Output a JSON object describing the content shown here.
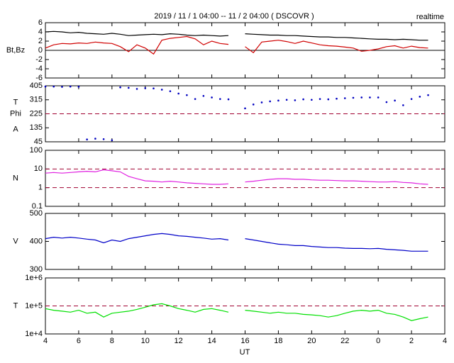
{
  "header": {
    "title": "2019 / 11 / 1  04:00 -- 11 / 2  04:00 ( DSCOVR )",
    "note": "realtime"
  },
  "x_axis": {
    "label": "UT",
    "xlim": [
      4,
      28
    ],
    "xticks": [
      4,
      6,
      8,
      10,
      12,
      14,
      16,
      18,
      20,
      22,
      {
        "value": 24,
        "label": "0"
      },
      {
        "value": 26,
        "label": "2"
      },
      {
        "value": 28,
        "label": "4"
      }
    ],
    "x": [
      4,
      4.5,
      5,
      5.5,
      6,
      6.5,
      7,
      7.5,
      8,
      8.5,
      9,
      9.5,
      10,
      10.5,
      11,
      11.5,
      12,
      12.5,
      13,
      13.5,
      14,
      14.5,
      15,
      15.5,
      16,
      16.5,
      17,
      17.5,
      18,
      18.5,
      19,
      19.5,
      20,
      20.5,
      21,
      21.5,
      22,
      22.5,
      23,
      23.5,
      24,
      24.5,
      25,
      25.5,
      26,
      26.5,
      27
    ]
  },
  "chart_data": [
    {
      "type": "line",
      "ylabels": [
        "Bt,Bz"
      ],
      "ylim": [
        -6,
        6
      ],
      "yticks": [
        -6,
        -4,
        -2,
        0,
        2,
        4,
        6
      ],
      "log": false,
      "ref_lines": [
        0
      ],
      "ref_style": "solid",
      "ref_color": "#000000",
      "series": [
        {
          "name": "Bt",
          "color": "#000000",
          "values": [
            4.0,
            4.1,
            4.0,
            3.8,
            3.9,
            3.7,
            3.6,
            3.5,
            3.7,
            3.5,
            3.2,
            3.3,
            3.4,
            3.5,
            3.4,
            3.6,
            3.5,
            3.3,
            3.2,
            3.3,
            3.2,
            3.1,
            3.2,
            null,
            3.6,
            3.5,
            3.4,
            3.3,
            3.3,
            3.2,
            3.2,
            3.1,
            3.0,
            2.9,
            2.9,
            2.8,
            2.8,
            2.7,
            2.6,
            2.5,
            2.4,
            2.4,
            2.3,
            2.4,
            2.3,
            2.2,
            2.2
          ]
        },
        {
          "name": "Bz",
          "color": "#d00000",
          "values": [
            0.5,
            1.2,
            1.5,
            1.4,
            1.6,
            1.5,
            1.8,
            1.6,
            1.5,
            0.8,
            -0.3,
            1.2,
            0.5,
            -0.8,
            2.2,
            2.6,
            2.8,
            3.0,
            2.5,
            1.2,
            2.0,
            1.5,
            1.3,
            null,
            0.8,
            -0.5,
            1.8,
            2.0,
            2.2,
            1.9,
            1.5,
            2.0,
            1.6,
            1.2,
            1.0,
            0.9,
            0.7,
            0.5,
            -0.2,
            0.0,
            0.3,
            0.8,
            1.0,
            0.5,
            0.9,
            0.6,
            0.5
          ]
        }
      ]
    },
    {
      "type": "scatter",
      "ylabels": [
        "T",
        "Phi",
        "A"
      ],
      "ylim": [
        45,
        405
      ],
      "yticks": [
        45,
        135,
        225,
        315,
        405
      ],
      "log": false,
      "ref_lines": [
        225
      ],
      "ref_style": "dashed",
      "ref_color": "#a00030",
      "series": [
        {
          "name": "Phi",
          "color": "#0000c0",
          "values": [
            400,
            400,
            398,
            400,
            399,
            60,
            65,
            62,
            55,
            395,
            392,
            385,
            390,
            388,
            380,
            370,
            355,
            345,
            320,
            340,
            330,
            320,
            318,
            null,
            260,
            285,
            298,
            305,
            310,
            315,
            312,
            318,
            315,
            320,
            318,
            322,
            325,
            328,
            330,
            330,
            330,
            300,
            310,
            280,
            320,
            335,
            345
          ]
        }
      ]
    },
    {
      "type": "line",
      "ylabels": [
        "N"
      ],
      "ylim": [
        0.1,
        100
      ],
      "yticks": [
        0.1,
        1,
        10,
        100
      ],
      "log": true,
      "ref_lines": [
        1,
        10
      ],
      "ref_style": "dashed",
      "ref_color": "#a00030",
      "series": [
        {
          "name": "N",
          "color": "#e020e0",
          "values": [
            6,
            6.5,
            6,
            6.5,
            7,
            7.5,
            7,
            9,
            8,
            7,
            4,
            3,
            2.3,
            2.2,
            2,
            2.2,
            2,
            1.8,
            1.7,
            1.6,
            1.5,
            1.5,
            1.6,
            null,
            2,
            2.2,
            2.5,
            2.8,
            3,
            3,
            2.8,
            2.8,
            2.6,
            2.5,
            2.5,
            2.4,
            2.3,
            2.3,
            2.2,
            2.1,
            2,
            2,
            2.1,
            1.9,
            1.8,
            1.6,
            1.5
          ]
        }
      ]
    },
    {
      "type": "line",
      "ylabels": [
        "V"
      ],
      "ylim": [
        300,
        500
      ],
      "yticks": [
        300,
        400,
        500
      ],
      "log": false,
      "ref_lines": [],
      "ref_style": "dashed",
      "ref_color": "#a00030",
      "series": [
        {
          "name": "V",
          "color": "#0000c8",
          "values": [
            410,
            415,
            412,
            415,
            412,
            408,
            405,
            395,
            405,
            400,
            410,
            415,
            420,
            425,
            428,
            425,
            420,
            418,
            415,
            412,
            408,
            410,
            405,
            null,
            410,
            405,
            400,
            395,
            390,
            388,
            385,
            385,
            382,
            380,
            378,
            378,
            376,
            375,
            375,
            374,
            375,
            372,
            370,
            368,
            365,
            365,
            365
          ]
        }
      ]
    },
    {
      "type": "line",
      "ylabels": [
        "T"
      ],
      "ylim": [
        10000,
        1000000
      ],
      "yticks": [
        {
          "value": 10000,
          "label": "1e+4"
        },
        {
          "value": 100000,
          "label": "1e+5"
        },
        {
          "value": 1000000,
          "label": "1e+6"
        }
      ],
      "log": true,
      "ref_lines": [
        100000
      ],
      "ref_style": "dashed",
      "ref_color": "#a00030",
      "series": [
        {
          "name": "T",
          "color": "#00e000",
          "values": [
            80000,
            70000,
            65000,
            60000,
            70000,
            55000,
            60000,
            40000,
            55000,
            60000,
            65000,
            75000,
            90000,
            110000,
            120000,
            100000,
            80000,
            70000,
            60000,
            75000,
            80000,
            70000,
            60000,
            null,
            70000,
            65000,
            60000,
            55000,
            60000,
            55000,
            55000,
            50000,
            48000,
            45000,
            40000,
            45000,
            55000,
            65000,
            70000,
            65000,
            70000,
            55000,
            50000,
            40000,
            30000,
            35000,
            40000
          ]
        }
      ]
    }
  ]
}
